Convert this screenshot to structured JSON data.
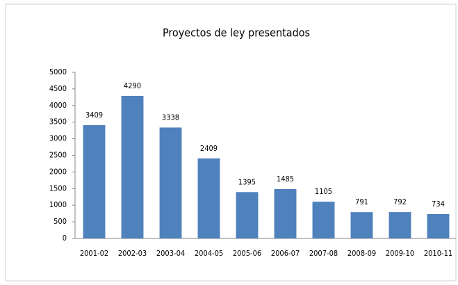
{
  "chart_data": {
    "type": "bar",
    "title": "Proyectos de ley presentados",
    "categories": [
      "2001-02",
      "2002-03",
      "2003-04",
      "2004-05",
      "2005-06",
      "2006-07",
      "2007-08",
      "2008-09",
      "2009-10",
      "2010-11"
    ],
    "values": [
      3409,
      4290,
      3338,
      2409,
      1395,
      1485,
      1105,
      791,
      792,
      734
    ],
    "color": "#4f81bd",
    "ylim": [
      0,
      5000
    ],
    "yticks": [
      0,
      500,
      1000,
      1500,
      2000,
      2500,
      3000,
      3500,
      4000,
      4500,
      5000
    ],
    "grid": false
  }
}
